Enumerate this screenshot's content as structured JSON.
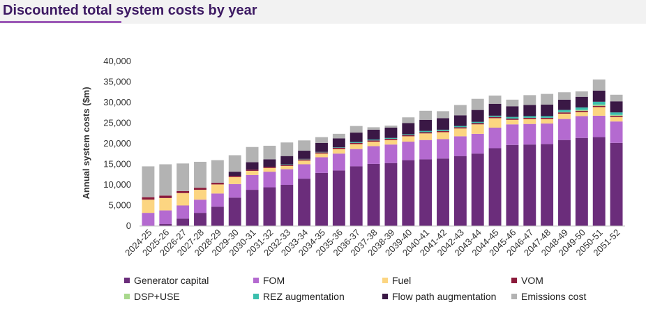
{
  "chart_data": {
    "type": "bar",
    "stacked": true,
    "title": "Discounted total system costs by year",
    "ylabel": "Annual system costs ($m)",
    "xlabel": "",
    "ylim": [
      0,
      40000
    ],
    "yticks": [
      "0",
      "5,000",
      "10,000",
      "15,000",
      "20,000",
      "25,000",
      "30,000",
      "35,000",
      "40,000"
    ],
    "categories": [
      "2024-25",
      "2025-26",
      "2026-27",
      "2027-28",
      "2028-29",
      "2029-30",
      "2030-31",
      "2031-32",
      "2032-33",
      "2033-34",
      "2034-35",
      "2035-36",
      "2036-37",
      "2037-38",
      "2038-39",
      "2039-40",
      "2040-41",
      "2041-42",
      "2042-43",
      "2043-44",
      "2044-45",
      "2045-46",
      "2046-47",
      "2047-48",
      "2048-49",
      "2049-50",
      "2050-51",
      "2051-52"
    ],
    "legend_position": "bottom",
    "series": [
      {
        "name": "Generator capital",
        "color": "#6b2d7b",
        "values": [
          0,
          500,
          1800,
          3200,
          4700,
          6900,
          8800,
          9400,
          10000,
          11500,
          12900,
          13500,
          14500,
          15100,
          15300,
          16000,
          16200,
          16400,
          17000,
          17600,
          18900,
          19700,
          19800,
          19900,
          20900,
          21400,
          21600,
          20200
        ]
      },
      {
        "name": "FOM",
        "color": "#b46ad0",
        "values": [
          3200,
          3300,
          3200,
          3200,
          3200,
          3300,
          3600,
          3800,
          3800,
          3500,
          3800,
          4100,
          4200,
          4300,
          4500,
          4500,
          4700,
          4700,
          4800,
          4800,
          5000,
          5000,
          5000,
          5000,
          5100,
          5300,
          5200,
          5200
        ]
      },
      {
        "name": "Fuel",
        "color": "#fcd581",
        "values": [
          3200,
          3000,
          3000,
          2400,
          2200,
          1700,
          1000,
          900,
          800,
          900,
          900,
          1100,
          1200,
          1100,
          1100,
          1300,
          1600,
          1700,
          1900,
          2300,
          2300,
          1100,
          1200,
          1100,
          1300,
          1000,
          2100,
          1100
        ]
      },
      {
        "name": "VOM",
        "color": "#8b1a3a",
        "values": [
          600,
          600,
          500,
          500,
          400,
          300,
          300,
          300,
          300,
          300,
          300,
          300,
          300,
          300,
          300,
          300,
          300,
          300,
          300,
          300,
          300,
          300,
          300,
          300,
          300,
          300,
          300,
          300
        ]
      },
      {
        "name": "DSP+USE",
        "color": "#a8d88c",
        "values": [
          0,
          0,
          0,
          0,
          0,
          0,
          0,
          0,
          0,
          0,
          0,
          0,
          0,
          0,
          0,
          0,
          0,
          0,
          0,
          0,
          0,
          0,
          0,
          0,
          100,
          200,
          300,
          200
        ]
      },
      {
        "name": "REZ augmentation",
        "color": "#3bbfad",
        "values": [
          0,
          0,
          0,
          0,
          0,
          0,
          0,
          0,
          100,
          100,
          100,
          100,
          200,
          200,
          200,
          200,
          300,
          300,
          300,
          300,
          300,
          400,
          400,
          400,
          500,
          600,
          700,
          600
        ]
      },
      {
        "name": "Flow path augmentation",
        "color": "#3a1845",
        "values": [
          0,
          0,
          0,
          0,
          0,
          1000,
          1800,
          1800,
          2000,
          2000,
          2200,
          2200,
          2300,
          2400,
          2500,
          2700,
          2700,
          2800,
          2600,
          2900,
          2900,
          2600,
          2700,
          2800,
          2500,
          2600,
          2700,
          2700
        ]
      },
      {
        "name": "Emissions cost",
        "color": "#b3b3b3",
        "values": [
          7500,
          7600,
          6700,
          6300,
          5500,
          4000,
          3700,
          3300,
          3300,
          2500,
          1400,
          1100,
          1600,
          600,
          500,
          1400,
          2200,
          1700,
          2500,
          2700,
          2000,
          1600,
          2400,
          2600,
          1800,
          1300,
          2700,
          1600
        ]
      }
    ]
  }
}
